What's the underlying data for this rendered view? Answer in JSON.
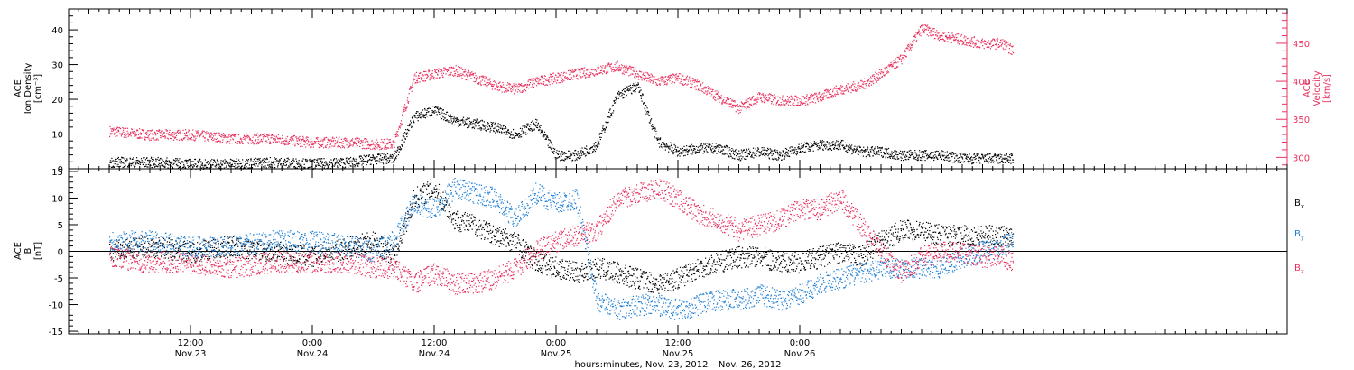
{
  "chart_data": [
    {
      "type": "scatter",
      "panel": "top",
      "ylabel_lines": [
        "ACE",
        "Ion Density",
        "[cm⁻³]"
      ],
      "ylabel_right_lines": [
        "ACE",
        "Velocity",
        "[km/s]"
      ],
      "ylim": [
        0,
        46
      ],
      "yticks": [
        0,
        10,
        20,
        30,
        40
      ],
      "ylim_right": [
        285,
        495
      ],
      "yticks_right": [
        300,
        350,
        400,
        450
      ],
      "x": [
        0,
        4,
        8,
        12,
        16,
        20,
        24,
        26,
        28,
        30,
        32,
        34,
        36,
        38,
        40,
        42,
        44,
        46,
        48,
        50,
        52,
        54,
        56,
        58,
        60,
        62,
        64,
        66,
        68,
        70,
        72,
        74,
        76,
        78,
        80,
        82,
        84,
        86,
        88,
        89
      ],
      "series": [
        {
          "axis": "left",
          "color": "#000000",
          "values": [
            2,
            2,
            1.5,
            1.5,
            2,
            1.5,
            2,
            3,
            3,
            15,
            17,
            14,
            13,
            12,
            10,
            13,
            4,
            4,
            7,
            21,
            24,
            8,
            5,
            6,
            6,
            4,
            5,
            4,
            6,
            7,
            7,
            5,
            5,
            4,
            4,
            4,
            3,
            3,
            3,
            3
          ]
        },
        {
          "axis": "right",
          "color": "#e8305c",
          "values": [
            335,
            330,
            330,
            325,
            325,
            320,
            320,
            318,
            318,
            405,
            410,
            415,
            405,
            395,
            390,
            400,
            405,
            410,
            415,
            420,
            410,
            400,
            405,
            395,
            380,
            365,
            380,
            375,
            375,
            380,
            390,
            395,
            410,
            430,
            470,
            460,
            455,
            450,
            450,
            440
          ]
        }
      ]
    },
    {
      "type": "scatter",
      "panel": "bottom",
      "ylabel_lines": [
        "ACE",
        "B",
        "[nT]"
      ],
      "ylim": [
        -15.5,
        15.5
      ],
      "yticks": [
        -15,
        -10,
        -5,
        0,
        5,
        10,
        15
      ],
      "x": [
        0,
        4,
        8,
        12,
        16,
        20,
        24,
        26,
        28,
        30,
        32,
        34,
        36,
        38,
        40,
        42,
        44,
        46,
        48,
        50,
        52,
        54,
        56,
        58,
        60,
        62,
        64,
        66,
        68,
        70,
        72,
        74,
        76,
        78,
        80,
        82,
        84,
        86,
        88,
        89
      ],
      "series": [
        {
          "name_main": "B",
          "name_sub": "x",
          "color": "#000000",
          "values": [
            0,
            1,
            0,
            1,
            0,
            -1,
            1,
            2,
            -1,
            10,
            12,
            6,
            5,
            3,
            2,
            -2,
            -3,
            -4,
            -3,
            -4,
            -5,
            -6,
            -5,
            -3,
            -2,
            -1,
            -1,
            -2,
            -2,
            -1,
            0,
            -1,
            2,
            4,
            4,
            3,
            3,
            3,
            3,
            3
          ]
        },
        {
          "name_main": "B",
          "name_sub": "y",
          "color": "#1e7fd6",
          "values": [
            2,
            2,
            1,
            1,
            2,
            2,
            1,
            0,
            2,
            9,
            8,
            12,
            11,
            10,
            6,
            11,
            9,
            10,
            -9,
            -11,
            -10,
            -10,
            -11,
            -10,
            -9,
            -9,
            -8,
            -9,
            -8,
            -6,
            -5,
            -4,
            -3,
            -3,
            -3,
            -3,
            -1,
            0,
            1,
            2
          ]
        },
        {
          "name_main": "B",
          "name_sub": "z",
          "color": "#e8305c",
          "values": [
            -1,
            -2,
            -2,
            -3,
            -2,
            -2,
            -2,
            -3,
            -3,
            -6,
            -4,
            -6,
            -6,
            -5,
            -3,
            0,
            2,
            3,
            4,
            10,
            11,
            12,
            10,
            7,
            6,
            4,
            5,
            6,
            8,
            8,
            10,
            5,
            0,
            -4,
            -1,
            0,
            0,
            -1,
            -1,
            -2
          ]
        }
      ]
    }
  ],
  "xaxis": {
    "xlim": [
      -4,
      116
    ],
    "ticks": [
      {
        "x": 8,
        "time": "12:00",
        "date": "Nov.23"
      },
      {
        "x": 20,
        "time": "0:00",
        "date": "Nov.24"
      },
      {
        "x": 32,
        "time": "12:00",
        "date": "Nov.24"
      },
      {
        "x": 44,
        "time": "0:00",
        "date": "Nov.25"
      },
      {
        "x": 56,
        "time": "12:00",
        "date": "Nov.25"
      },
      {
        "x": 68,
        "time": "0:00",
        "date": "Nov.26"
      }
    ],
    "title": "hours:minutes, Nov. 23, 2012 – Nov. 26, 2012"
  },
  "colors": {
    "black": "#000000",
    "red": "#e8305c",
    "blue": "#1e7fd6"
  }
}
